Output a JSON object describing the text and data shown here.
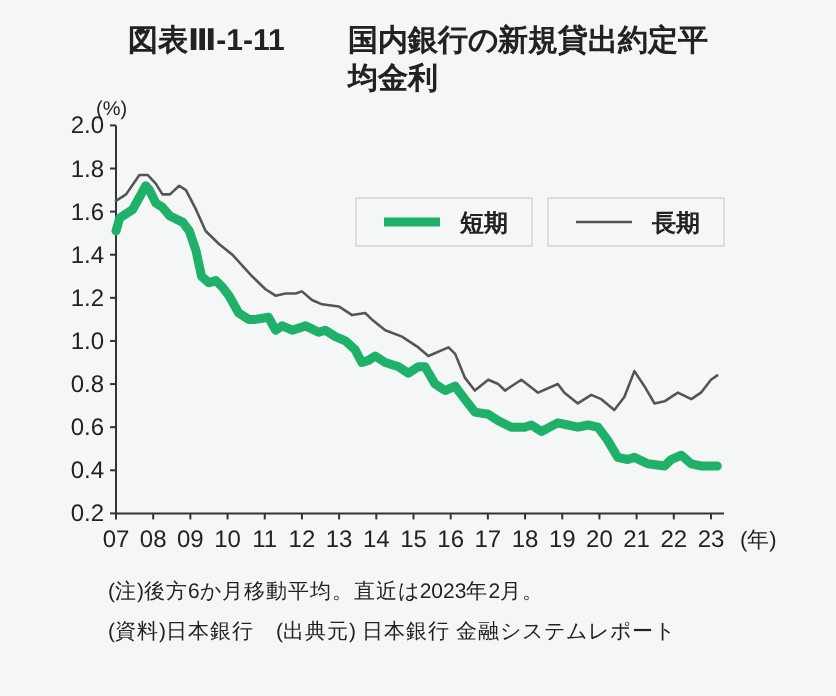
{
  "chart_data": {
    "type": "line",
    "title": "図表Ⅲ-1-11",
    "subtitle": "国内銀行の新規貸出約定平均金利",
    "ylabel": "(%)",
    "xlabel": "(年)",
    "annotations": [
      "(注)後方6か月移動平均。直近は2023年2月。",
      "(資料)日本銀行　(出典元) 日本銀行 金融システムレポート"
    ],
    "xlim": [
      2007,
      2023.35
    ],
    "ylim": [
      0.2,
      2.0
    ],
    "xticks": [
      {
        "value": 2007,
        "label": "07"
      },
      {
        "value": 2008,
        "label": "08"
      },
      {
        "value": 2009,
        "label": "09"
      },
      {
        "value": 2010,
        "label": "10"
      },
      {
        "value": 2011,
        "label": "11"
      },
      {
        "value": 2012,
        "label": "12"
      },
      {
        "value": 2013,
        "label": "13"
      },
      {
        "value": 2014,
        "label": "14"
      },
      {
        "value": 2015,
        "label": "15"
      },
      {
        "value": 2016,
        "label": "16"
      },
      {
        "value": 2017,
        "label": "17"
      },
      {
        "value": 2018,
        "label": "18"
      },
      {
        "value": 2019,
        "label": "19"
      },
      {
        "value": 2020,
        "label": "20"
      },
      {
        "value": 2021,
        "label": "21"
      },
      {
        "value": 2022,
        "label": "22"
      },
      {
        "value": 2023,
        "label": "23"
      }
    ],
    "yticks": [
      0.2,
      0.4,
      0.6,
      0.8,
      {
        "value": 1.0,
        "label": "1.0"
      },
      1.2,
      1.4,
      1.6,
      1.8,
      {
        "value": 2.0,
        "label": "2.0"
      }
    ],
    "legend": "top right",
    "grid": false,
    "series": [
      {
        "name": "短期",
        "color": "#1fb06a",
        "x": [
          2007.0,
          2007.1,
          2007.45,
          2007.8,
          2007.9,
          2008.07,
          2008.25,
          2008.45,
          2008.8,
          2008.97,
          2009.15,
          2009.3,
          2009.5,
          2009.68,
          2009.86,
          2010.04,
          2010.3,
          2010.57,
          2010.75,
          2011.1,
          2011.29,
          2011.47,
          2011.74,
          2012.1,
          2012.45,
          2012.63,
          2012.9,
          2013.17,
          2013.43,
          2013.61,
          2013.79,
          2013.97,
          2014.24,
          2014.6,
          2014.86,
          2015.13,
          2015.31,
          2015.58,
          2015.85,
          2016.12,
          2016.38,
          2016.65,
          2017.01,
          2017.28,
          2017.63,
          2017.99,
          2018.17,
          2018.44,
          2018.88,
          2019.15,
          2019.42,
          2019.69,
          2019.96,
          2020.22,
          2020.49,
          2020.76,
          2020.94,
          2021.3,
          2021.75,
          2021.93,
          2022.2,
          2022.47,
          2022.73,
          2023.17
        ],
        "values": [
          1.51,
          1.57,
          1.61,
          1.72,
          1.7,
          1.64,
          1.62,
          1.58,
          1.55,
          1.51,
          1.42,
          1.3,
          1.27,
          1.28,
          1.25,
          1.21,
          1.13,
          1.1,
          1.1,
          1.11,
          1.05,
          1.07,
          1.05,
          1.07,
          1.04,
          1.05,
          1.02,
          1.0,
          0.96,
          0.9,
          0.91,
          0.93,
          0.9,
          0.88,
          0.85,
          0.88,
          0.88,
          0.8,
          0.77,
          0.79,
          0.73,
          0.67,
          0.66,
          0.63,
          0.6,
          0.6,
          0.61,
          0.58,
          0.62,
          0.61,
          0.6,
          0.61,
          0.6,
          0.54,
          0.46,
          0.45,
          0.46,
          0.43,
          0.42,
          0.45,
          0.47,
          0.43,
          0.42,
          0.42
        ]
      },
      {
        "name": "長期",
        "color": "#555555",
        "x": [
          2007.0,
          2007.27,
          2007.63,
          2007.85,
          2008.07,
          2008.25,
          2008.45,
          2008.7,
          2008.88,
          2009.15,
          2009.41,
          2009.77,
          2010.13,
          2010.66,
          2011.02,
          2011.29,
          2011.56,
          2011.83,
          2012.0,
          2012.27,
          2012.54,
          2012.99,
          2013.35,
          2013.7,
          2013.88,
          2014.24,
          2014.69,
          2015.13,
          2015.4,
          2015.94,
          2016.12,
          2016.38,
          2016.65,
          2017.01,
          2017.28,
          2017.46,
          2017.9,
          2018.35,
          2018.88,
          2019.06,
          2019.42,
          2019.78,
          2020.05,
          2020.4,
          2020.67,
          2020.94,
          2021.21,
          2021.48,
          2021.75,
          2022.11,
          2022.47,
          2022.73,
          2023.0,
          2023.17
        ],
        "values": [
          1.65,
          1.68,
          1.77,
          1.77,
          1.73,
          1.68,
          1.68,
          1.72,
          1.7,
          1.61,
          1.51,
          1.45,
          1.4,
          1.3,
          1.24,
          1.21,
          1.22,
          1.22,
          1.23,
          1.19,
          1.17,
          1.16,
          1.12,
          1.13,
          1.1,
          1.05,
          1.02,
          0.97,
          0.93,
          0.97,
          0.94,
          0.83,
          0.77,
          0.82,
          0.8,
          0.77,
          0.82,
          0.76,
          0.8,
          0.76,
          0.71,
          0.75,
          0.73,
          0.68,
          0.74,
          0.86,
          0.79,
          0.71,
          0.72,
          0.76,
          0.73,
          0.76,
          0.82,
          0.84
        ]
      }
    ]
  }
}
